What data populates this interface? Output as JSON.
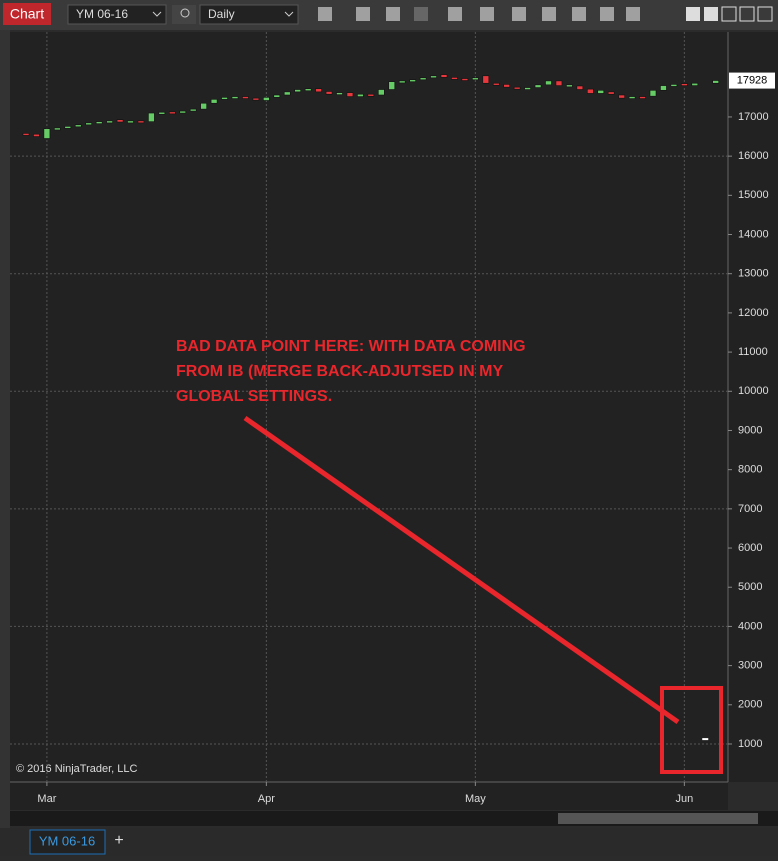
{
  "toolbar": {
    "tab": "Chart",
    "instrument": "YM 06-16",
    "interval": "Daily"
  },
  "bottom_tab": "YM 06-16",
  "chart_data": {
    "type": "candlestick",
    "copyright": "© 2016 NinjaTrader, LLC",
    "annotation": [
      "BAD DATA POINT HERE: WITH DATA COMING",
      "FROM IB (MERGE BACK-ADJUTSED IN MY",
      "GLOBAL SETTINGS."
    ],
    "categories": [
      null,
      null,
      "Mar",
      null,
      null,
      null,
      null,
      null,
      null,
      null,
      null,
      null,
      null,
      null,
      null,
      null,
      null,
      null,
      null,
      null,
      null,
      null,
      null,
      "Apr",
      null,
      null,
      null,
      null,
      null,
      null,
      null,
      null,
      null,
      null,
      null,
      null,
      null,
      null,
      null,
      null,
      null,
      null,
      null,
      "May",
      null,
      null,
      null,
      null,
      null,
      null,
      null,
      null,
      null,
      null,
      null,
      null,
      null,
      null,
      null,
      null,
      null,
      null,
      null,
      "Jun",
      null,
      null,
      null
    ],
    "open": [
      16580,
      16560,
      16450,
      16700,
      16720,
      16760,
      16800,
      16850,
      16880,
      16930,
      16880,
      16900,
      16880,
      17100,
      17130,
      17110,
      17150,
      17200,
      17350,
      17450,
      17500,
      17520,
      17480,
      17420,
      17500,
      17560,
      17640,
      17700,
      17720,
      17650,
      17580,
      17620,
      17520,
      17580,
      17560,
      17700,
      17900,
      17930,
      17950,
      18000,
      18080,
      18010,
      17980,
      17960,
      18050,
      17860,
      17830,
      17760,
      17740,
      17750,
      17820,
      17920,
      17800,
      17790,
      17710,
      17600,
      17640,
      17560,
      17490,
      17520,
      17530,
      17680,
      17800,
      17850,
      17800,
      1150,
      17860
    ],
    "close": [
      16540,
      16500,
      16700,
      16720,
      16760,
      16800,
      16850,
      16880,
      16900,
      16870,
      16900,
      16880,
      17100,
      17120,
      17100,
      17150,
      17200,
      17350,
      17450,
      17500,
      17520,
      17470,
      17430,
      17500,
      17560,
      17640,
      17700,
      17720,
      17640,
      17580,
      17620,
      17520,
      17580,
      17560,
      17700,
      17900,
      17920,
      17950,
      18000,
      18050,
      18010,
      17980,
      17960,
      18000,
      17860,
      17830,
      17760,
      17740,
      17750,
      17820,
      17920,
      17800,
      17820,
      17700,
      17600,
      17680,
      17580,
      17480,
      17520,
      17510,
      17680,
      17800,
      17830,
      17800,
      17860,
      1150,
      17930
    ],
    "up_color": "#66cc66",
    "down_color": "#e8383d",
    "doji_color": "#ffffff",
    "last_price": 17928,
    "ylim": [
      30,
      19040
    ],
    "yticks": [
      1000,
      2000,
      3000,
      4000,
      5000,
      6000,
      7000,
      8000,
      9000,
      10000,
      11000,
      12000,
      13000,
      14000,
      15000,
      16000,
      17000
    ],
    "grid": true
  }
}
